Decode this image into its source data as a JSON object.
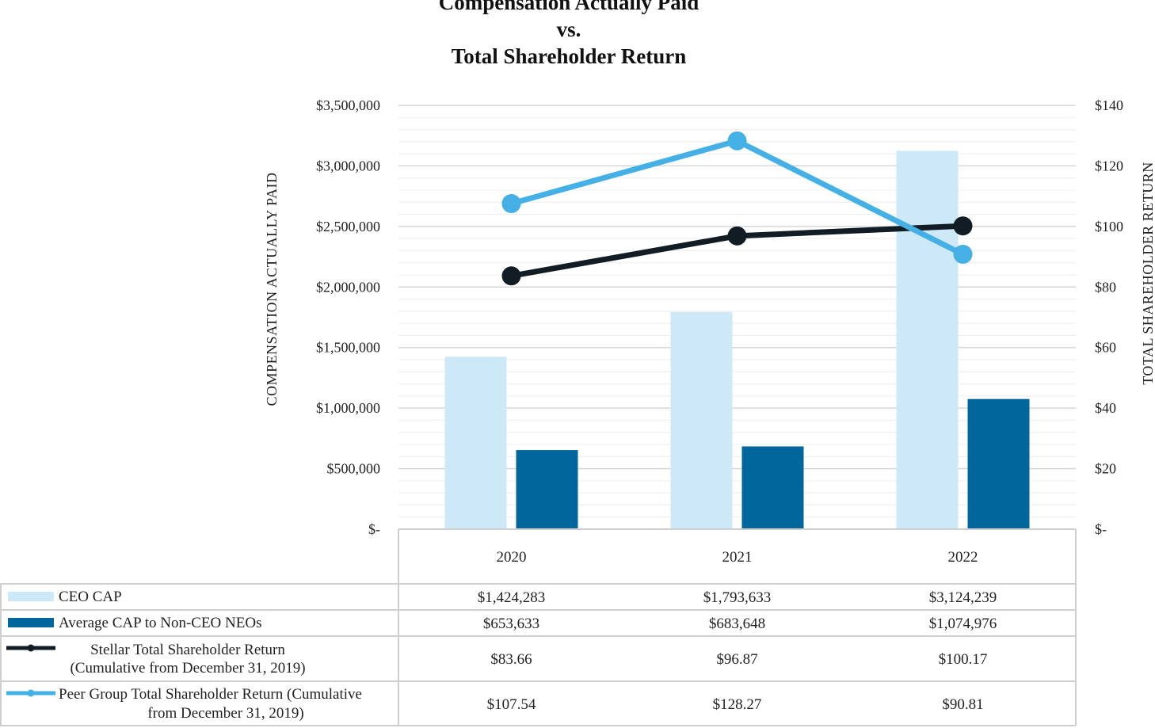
{
  "chart_data": {
    "type": "bar",
    "title": [
      "Compensation Actually Paid",
      "vs.",
      "Total Shareholder Return"
    ],
    "categories": [
      "2020",
      "2021",
      "2022"
    ],
    "ylabel_left": "COMPENSATION ACTUALLY PAID",
    "ylabel_right": "TOTAL SHAREHOLDER RETURN",
    "ylim_left": [
      0,
      3500000
    ],
    "ylim_right": [
      0,
      140
    ],
    "left_ticks": [
      "$-",
      "$500,000",
      "$1,000,000",
      "$1,500,000",
      "$2,000,000",
      "$2,500,000",
      "$3,000,000",
      "$3,500,000"
    ],
    "right_ticks": [
      "$-",
      "$20",
      "$40",
      "$60",
      "$80",
      "$100",
      "$120",
      "$140"
    ],
    "grid": true,
    "bar_series": [
      {
        "name": "CEO CAP",
        "values": [
          1424283,
          1793633,
          3124239
        ],
        "labels": [
          "$1,424,283",
          "$1,793,633",
          "$3,124,239"
        ],
        "color": "#cde9f8"
      },
      {
        "name": "Average CAP to Non-CEO NEOs",
        "values": [
          653633,
          683648,
          1074976
        ],
        "labels": [
          "$653,633",
          "$683,648",
          "$1,074,976"
        ],
        "color": "#00669c"
      }
    ],
    "line_series": [
      {
        "name": [
          "Stellar Total Shareholder Return",
          "(Cumulative from December 31, 2019)"
        ],
        "values": [
          83.66,
          96.87,
          100.17
        ],
        "labels": [
          "$83.66",
          "$96.87",
          "$100.17"
        ],
        "color": "#111c24"
      },
      {
        "name": [
          "Peer Group Total Shareholder Return (Cumulative",
          "from December 31, 2019)"
        ],
        "values": [
          107.54,
          128.27,
          90.81
        ],
        "labels": [
          "$107.54",
          "$128.27",
          "$90.81"
        ],
        "color": "#45b0e6"
      }
    ]
  }
}
